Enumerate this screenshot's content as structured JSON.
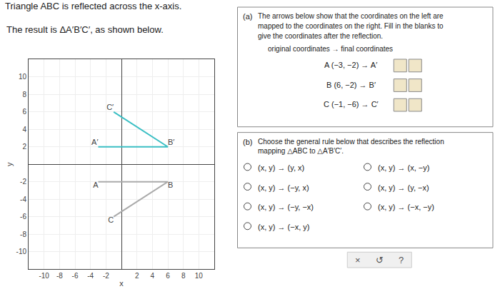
{
  "chart_data": {
    "type": "line",
    "title": "Triangle ABC is reflected across the x-axis.",
    "subtitle": "The result is ΔA′B′C′, as shown below.",
    "xlabel": "x",
    "ylabel": "y",
    "series": [
      {
        "color": "#aaaaaa",
        "x": [
          -3,
          6,
          -1
        ],
        "values": [
          -2,
          -2,
          -6
        ],
        "point_labels": [
          "A",
          "B",
          "C"
        ]
      },
      {
        "color": "#3bbfc4",
        "x": [
          -3,
          6,
          -1
        ],
        "values": [
          2,
          2,
          6
        ],
        "point_labels": [
          "A′",
          "B′",
          "C′"
        ]
      }
    ],
    "xlim": [
      -12,
      12
    ],
    "ylim": [
      -12,
      12
    ],
    "xticks": [
      -10,
      -8,
      -6,
      -4,
      -2,
      {
        "value": 0,
        "label": ""
      },
      2,
      4,
      6,
      8,
      10
    ],
    "yticks": [
      -10,
      -8,
      -6,
      -4,
      -2,
      {
        "value": 0,
        "label": ""
      },
      2,
      4,
      6,
      8,
      10
    ],
    "grid": true,
    "panels": [
      {
        "label": "(a)",
        "text": [
          "The arrows below show that the coordinates on the left are",
          "mapped to the coordinates on the right. Fill in the blanks to",
          "give the coordinates after the reflection."
        ],
        "header": "original coordinates → final coordinates",
        "rows": [
          "A (−3, −2) → A′",
          "B (6, −2) → B′",
          "C (−1, −6) → C′"
        ]
      },
      {
        "label": "(b)",
        "text": [
          "Choose the general rule below that describes the reflection",
          "mapping △ABC to △A′B′C′."
        ],
        "choices": [
          [
            "(x, y) → (y, x)",
            "(x, y) → (−y, x)",
            "(x, y) → (−y, −x)",
            "(x, y) → (−x, y)"
          ],
          [
            "(x, y) → (x, −y)",
            "(x, y) → (y, −x)",
            "(x, y) → (−x, −y)"
          ]
        ]
      }
    ],
    "buttons": [
      "×",
      "↺",
      "?"
    ]
  }
}
